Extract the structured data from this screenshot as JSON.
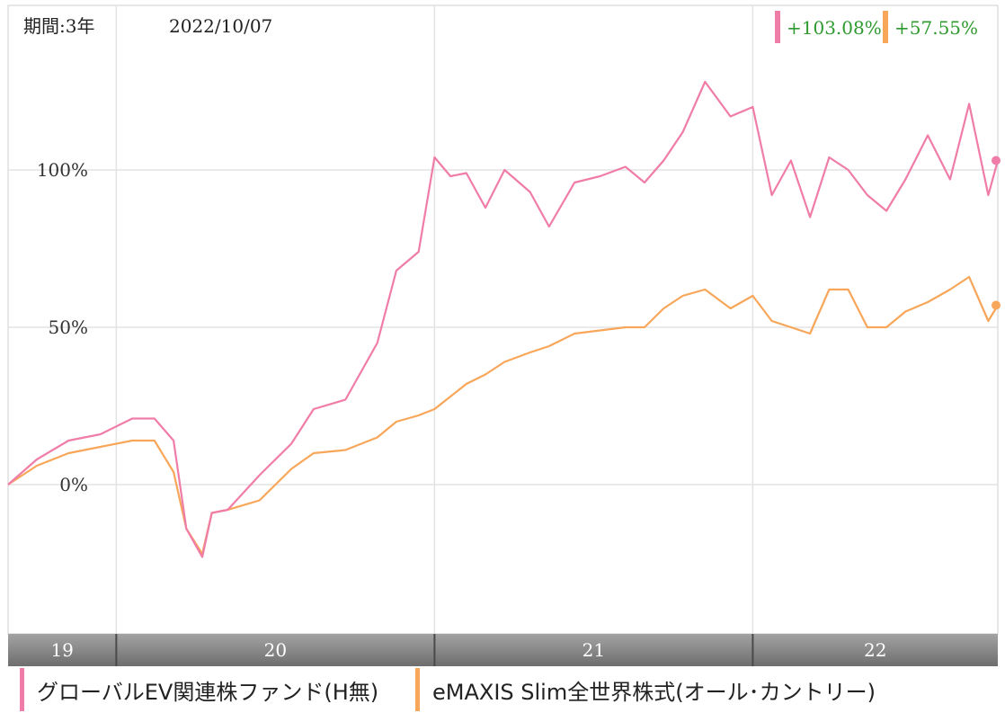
{
  "header": {
    "period_label": "期間:3年",
    "date": "2022/10/07"
  },
  "colors": {
    "series_1": "#f07ca8",
    "series_2": "#f7a65a",
    "positive_text": "#2e9a2e",
    "axis_band": "#8a8a8a",
    "grid": "#e3e3e3"
  },
  "chart_data": {
    "type": "line",
    "title": "",
    "xlabel": "",
    "ylabel": "",
    "x_range": [
      2019.66,
      2022.77
    ],
    "ylim": [
      -50,
      150
    ],
    "yticks": [
      0,
      50,
      100
    ],
    "ytick_labels": [
      "0%",
      "50%",
      "100%"
    ],
    "xtick_labels": [
      {
        "label": "19",
        "x": 2019.66
      },
      {
        "label": "20",
        "x": 2020.0
      },
      {
        "label": "21",
        "x": 2021.0
      },
      {
        "label": "22",
        "x": 2022.0
      }
    ],
    "xgrid": [
      2020.0,
      2021.0,
      2022.0
    ],
    "grid": true,
    "series": [
      {
        "name": "グローバルEV関連株ファンド(H無)",
        "end_label": "+103.08%",
        "x": [
          2019.66,
          2019.75,
          2019.85,
          2019.95,
          2020.05,
          2020.12,
          2020.18,
          2020.22,
          2020.27,
          2020.3,
          2020.35,
          2020.45,
          2020.55,
          2020.62,
          2020.72,
          2020.82,
          2020.88,
          2020.95,
          2021.0,
          2021.05,
          2021.1,
          2021.16,
          2021.22,
          2021.3,
          2021.36,
          2021.44,
          2021.52,
          2021.6,
          2021.66,
          2021.72,
          2021.78,
          2021.85,
          2021.93,
          2022.0,
          2022.06,
          2022.12,
          2022.18,
          2022.24,
          2022.3,
          2022.36,
          2022.42,
          2022.48,
          2022.55,
          2022.62,
          2022.68,
          2022.74,
          2022.77
        ],
        "values": [
          0,
          8,
          14,
          16,
          21,
          21,
          14,
          -14,
          -23,
          -9,
          -8,
          3,
          13,
          24,
          27,
          45,
          68,
          74,
          104,
          98,
          99,
          88,
          100,
          93,
          82,
          96,
          98,
          101,
          96,
          103,
          112,
          128,
          117,
          120,
          92,
          103,
          85,
          104,
          100,
          92,
          87,
          97,
          111,
          97,
          121,
          92,
          103
        ]
      },
      {
        "name": "eMAXIS Slim全世界株式(オール･カントリー)",
        "end_label": "+57.55%",
        "x": [
          2019.66,
          2019.75,
          2019.85,
          2019.95,
          2020.05,
          2020.12,
          2020.18,
          2020.22,
          2020.27,
          2020.3,
          2020.35,
          2020.45,
          2020.55,
          2020.62,
          2020.72,
          2020.82,
          2020.88,
          2020.95,
          2021.0,
          2021.05,
          2021.1,
          2021.16,
          2021.22,
          2021.3,
          2021.36,
          2021.44,
          2021.52,
          2021.6,
          2021.66,
          2021.72,
          2021.78,
          2021.85,
          2021.93,
          2022.0,
          2022.06,
          2022.12,
          2022.18,
          2022.24,
          2022.3,
          2022.36,
          2022.42,
          2022.48,
          2022.55,
          2022.62,
          2022.68,
          2022.74,
          2022.77
        ],
        "values": [
          0,
          6,
          10,
          12,
          14,
          14,
          4,
          -14,
          -22,
          -9,
          -8,
          -5,
          5,
          10,
          11,
          15,
          20,
          22,
          24,
          28,
          32,
          35,
          39,
          42,
          44,
          48,
          49,
          50,
          50,
          56,
          60,
          62,
          56,
          60,
          52,
          50,
          48,
          62,
          62,
          50,
          50,
          55,
          58,
          62,
          66,
          52,
          57
        ]
      }
    ]
  },
  "legend": {
    "items": [
      {
        "label": "グローバルEV関連株ファンド(H無)"
      },
      {
        "label": "eMAXIS Slim全世界株式(オール･カントリー)"
      }
    ]
  }
}
